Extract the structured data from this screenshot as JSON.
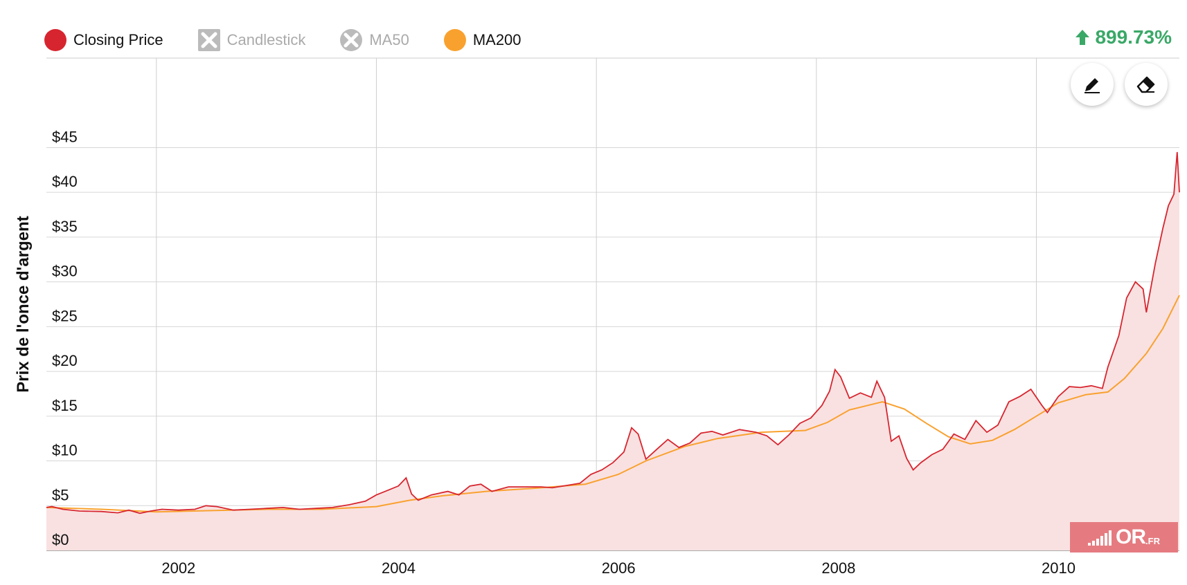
{
  "legend": [
    {
      "label": "Closing Price",
      "color": "#d7252f",
      "marker": "circle",
      "active": true
    },
    {
      "label": "Candlestick",
      "color": "#bbbbbb",
      "marker": "square-x",
      "active": false
    },
    {
      "label": "MA50",
      "color": "#bbbbbb",
      "marker": "circle-x",
      "active": false
    },
    {
      "label": "MA200",
      "color": "#f9a12e",
      "marker": "circle",
      "active": true
    }
  ],
  "performance": {
    "value": "899.73%",
    "direction": "up",
    "color": "#3aa867"
  },
  "tools": {
    "draw_icon": "pencil-icon",
    "erase_icon": "eraser-icon"
  },
  "logo": {
    "text": "OR",
    "suffix": ".FR"
  },
  "chart_data": {
    "type": "line",
    "title": "",
    "xlabel": "",
    "ylabel": "Prix de l'once d'argent",
    "xlim": [
      2001.0,
      2011.3
    ],
    "ylim": [
      0,
      50
    ],
    "y_ticks": [
      0,
      5,
      10,
      15,
      20,
      25,
      30,
      35,
      40,
      45
    ],
    "y_tick_labels": [
      "$0",
      "$5",
      "$10",
      "$15",
      "$20",
      "$25",
      "$30",
      "$35",
      "$40",
      "$45"
    ],
    "x_ticks": [
      2002,
      2004,
      2006,
      2008,
      2010
    ],
    "x_tick_labels": [
      "2002",
      "2004",
      "2006",
      "2008",
      "2010"
    ],
    "grid": true,
    "legend_position": "top-left",
    "series": [
      {
        "name": "Closing Price",
        "color": "#d7252f",
        "fill": "#f9e1e1",
        "points": [
          [
            2001.0,
            4.8
          ],
          [
            2001.05,
            4.9
          ],
          [
            2001.15,
            4.6
          ],
          [
            2001.3,
            4.4
          ],
          [
            2001.5,
            4.35
          ],
          [
            2001.65,
            4.2
          ],
          [
            2001.75,
            4.5
          ],
          [
            2001.85,
            4.15
          ],
          [
            2001.95,
            4.4
          ],
          [
            2002.05,
            4.6
          ],
          [
            2002.2,
            4.5
          ],
          [
            2002.35,
            4.6
          ],
          [
            2002.45,
            5.0
          ],
          [
            2002.55,
            4.9
          ],
          [
            2002.7,
            4.5
          ],
          [
            2002.85,
            4.6
          ],
          [
            2003.0,
            4.7
          ],
          [
            2003.15,
            4.8
          ],
          [
            2003.3,
            4.6
          ],
          [
            2003.45,
            4.7
          ],
          [
            2003.6,
            4.8
          ],
          [
            2003.75,
            5.1
          ],
          [
            2003.9,
            5.5
          ],
          [
            2004.0,
            6.2
          ],
          [
            2004.1,
            6.7
          ],
          [
            2004.2,
            7.2
          ],
          [
            2004.27,
            8.1
          ],
          [
            2004.32,
            6.3
          ],
          [
            2004.38,
            5.6
          ],
          [
            2004.5,
            6.2
          ],
          [
            2004.65,
            6.6
          ],
          [
            2004.75,
            6.2
          ],
          [
            2004.85,
            7.2
          ],
          [
            2004.95,
            7.4
          ],
          [
            2005.05,
            6.6
          ],
          [
            2005.2,
            7.1
          ],
          [
            2005.35,
            7.1
          ],
          [
            2005.5,
            7.1
          ],
          [
            2005.6,
            7.0
          ],
          [
            2005.75,
            7.3
          ],
          [
            2005.85,
            7.5
          ],
          [
            2005.95,
            8.5
          ],
          [
            2006.05,
            9.0
          ],
          [
            2006.15,
            9.8
          ],
          [
            2006.25,
            11.0
          ],
          [
            2006.32,
            13.7
          ],
          [
            2006.38,
            13.0
          ],
          [
            2006.45,
            10.2
          ],
          [
            2006.55,
            11.3
          ],
          [
            2006.65,
            12.4
          ],
          [
            2006.75,
            11.5
          ],
          [
            2006.85,
            12.0
          ],
          [
            2006.95,
            13.1
          ],
          [
            2007.05,
            13.3
          ],
          [
            2007.15,
            12.9
          ],
          [
            2007.3,
            13.5
          ],
          [
            2007.45,
            13.2
          ],
          [
            2007.55,
            12.8
          ],
          [
            2007.65,
            11.8
          ],
          [
            2007.75,
            12.9
          ],
          [
            2007.85,
            14.2
          ],
          [
            2007.95,
            14.8
          ],
          [
            2008.05,
            16.2
          ],
          [
            2008.12,
            17.8
          ],
          [
            2008.17,
            20.2
          ],
          [
            2008.22,
            19.4
          ],
          [
            2008.3,
            17.0
          ],
          [
            2008.4,
            17.6
          ],
          [
            2008.5,
            17.1
          ],
          [
            2008.55,
            18.9
          ],
          [
            2008.62,
            17.1
          ],
          [
            2008.68,
            12.2
          ],
          [
            2008.75,
            12.8
          ],
          [
            2008.82,
            10.3
          ],
          [
            2008.88,
            9.0
          ],
          [
            2008.95,
            9.8
          ],
          [
            2009.05,
            10.7
          ],
          [
            2009.15,
            11.3
          ],
          [
            2009.25,
            13.0
          ],
          [
            2009.35,
            12.4
          ],
          [
            2009.45,
            14.5
          ],
          [
            2009.55,
            13.2
          ],
          [
            2009.65,
            14.0
          ],
          [
            2009.75,
            16.6
          ],
          [
            2009.85,
            17.2
          ],
          [
            2009.95,
            18.0
          ],
          [
            2010.05,
            16.2
          ],
          [
            2010.1,
            15.4
          ],
          [
            2010.2,
            17.2
          ],
          [
            2010.3,
            18.3
          ],
          [
            2010.4,
            18.2
          ],
          [
            2010.5,
            18.4
          ],
          [
            2010.6,
            18.1
          ],
          [
            2010.65,
            20.5
          ],
          [
            2010.75,
            24.0
          ],
          [
            2010.82,
            28.2
          ],
          [
            2010.9,
            30.0
          ],
          [
            2010.97,
            29.2
          ],
          [
            2011.0,
            26.6
          ],
          [
            2011.08,
            32.0
          ],
          [
            2011.15,
            36.0
          ],
          [
            2011.2,
            38.5
          ],
          [
            2011.25,
            39.8
          ],
          [
            2011.28,
            44.5
          ],
          [
            2011.3,
            40.0
          ]
        ]
      },
      {
        "name": "MA200",
        "color": "#f9a12e",
        "points": [
          [
            2001.0,
            4.8
          ],
          [
            2001.5,
            4.6
          ],
          [
            2002.0,
            4.3
          ],
          [
            2002.5,
            4.45
          ],
          [
            2003.0,
            4.6
          ],
          [
            2003.5,
            4.6
          ],
          [
            2004.0,
            4.9
          ],
          [
            2004.3,
            5.6
          ],
          [
            2004.6,
            6.1
          ],
          [
            2005.0,
            6.6
          ],
          [
            2005.5,
            7.0
          ],
          [
            2005.9,
            7.4
          ],
          [
            2006.2,
            8.5
          ],
          [
            2006.45,
            10.0
          ],
          [
            2006.8,
            11.6
          ],
          [
            2007.1,
            12.5
          ],
          [
            2007.5,
            13.2
          ],
          [
            2007.9,
            13.4
          ],
          [
            2008.1,
            14.3
          ],
          [
            2008.3,
            15.7
          ],
          [
            2008.6,
            16.6
          ],
          [
            2008.8,
            15.8
          ],
          [
            2009.0,
            14.2
          ],
          [
            2009.2,
            12.7
          ],
          [
            2009.4,
            11.9
          ],
          [
            2009.6,
            12.3
          ],
          [
            2009.8,
            13.5
          ],
          [
            2010.0,
            15.0
          ],
          [
            2010.2,
            16.5
          ],
          [
            2010.45,
            17.4
          ],
          [
            2010.65,
            17.7
          ],
          [
            2010.8,
            19.2
          ],
          [
            2011.0,
            22.0
          ],
          [
            2011.15,
            24.8
          ],
          [
            2011.3,
            28.5
          ]
        ]
      }
    ]
  }
}
